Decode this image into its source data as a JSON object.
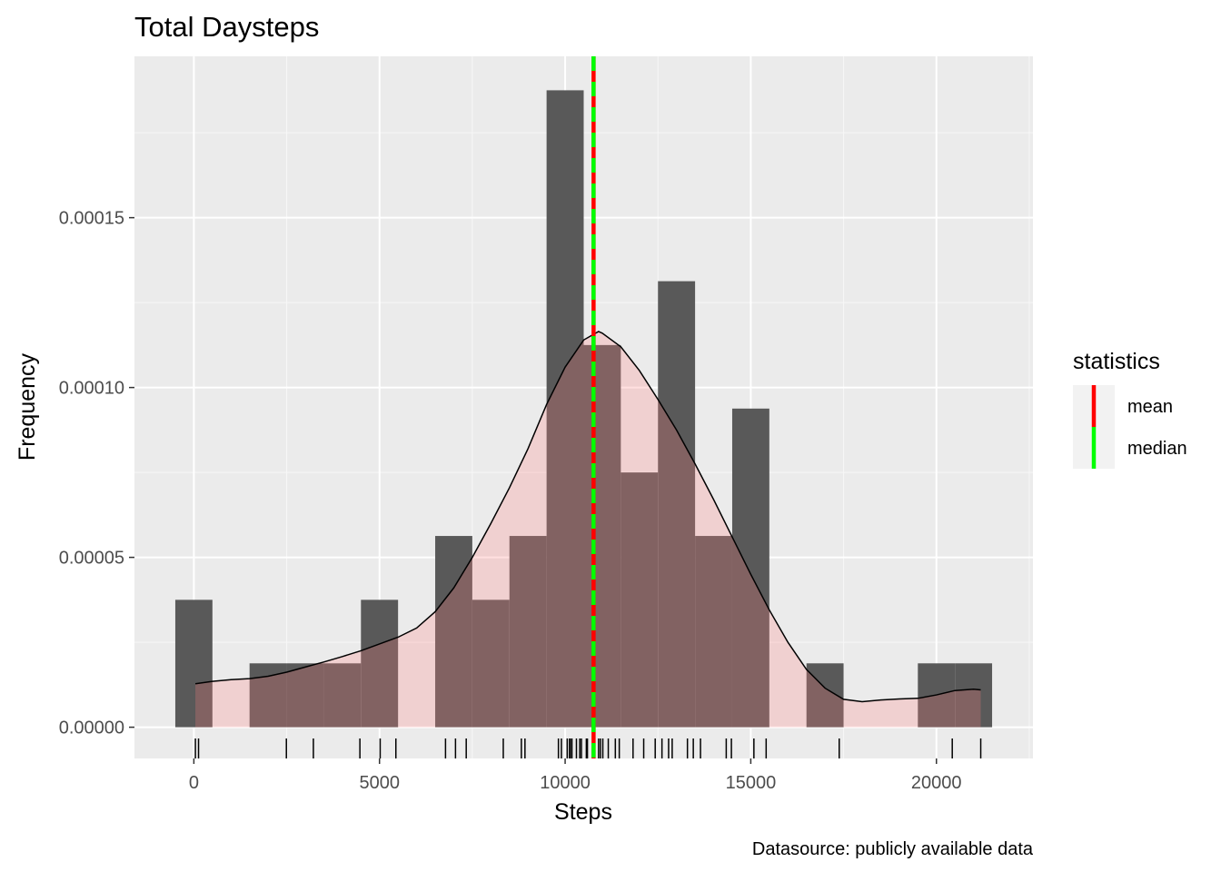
{
  "chart_data": {
    "type": "histogram",
    "title": "Total Daysteps",
    "xlabel": "Steps",
    "ylabel": "Frequency",
    "caption": "Datasource: publicly available data",
    "xlim": [
      -1600,
      22600
    ],
    "ylim": [
      -9.2e-06,
      0.0001975
    ],
    "x_ticks": [
      0,
      5000,
      10000,
      15000,
      20000
    ],
    "x_tick_labels": [
      "0",
      "5000",
      "10000",
      "15000",
      "20000"
    ],
    "y_ticks": [
      0,
      5e-05,
      0.0001,
      0.00015
    ],
    "y_tick_labels": [
      "0.00000",
      "0.00005",
      "0.00010",
      "0.00015"
    ],
    "grid": true,
    "panel_background": "#ebebeb",
    "histogram": {
      "fill": "#595959",
      "bins": [
        {
          "x0": -500,
          "x1": 500,
          "density": 3.75e-05
        },
        {
          "x0": 500,
          "x1": 1500,
          "density": 0
        },
        {
          "x0": 1500,
          "x1": 2500,
          "density": 1.88e-05
        },
        {
          "x0": 2500,
          "x1": 3500,
          "density": 1.88e-05
        },
        {
          "x0": 3500,
          "x1": 4500,
          "density": 1.88e-05
        },
        {
          "x0": 4500,
          "x1": 5500,
          "density": 3.75e-05
        },
        {
          "x0": 5500,
          "x1": 6500,
          "density": 0
        },
        {
          "x0": 6500,
          "x1": 7500,
          "density": 5.63e-05
        },
        {
          "x0": 7500,
          "x1": 8500,
          "density": 3.75e-05
        },
        {
          "x0": 8500,
          "x1": 9500,
          "density": 5.63e-05
        },
        {
          "x0": 9500,
          "x1": 10500,
          "density": 0.0001875
        },
        {
          "x0": 10500,
          "x1": 11500,
          "density": 0.0001125
        },
        {
          "x0": 11500,
          "x1": 12500,
          "density": 7.5e-05
        },
        {
          "x0": 12500,
          "x1": 13500,
          "density": 0.0001313
        },
        {
          "x0": 13500,
          "x1": 14500,
          "density": 5.63e-05
        },
        {
          "x0": 14500,
          "x1": 15500,
          "density": 9.38e-05
        },
        {
          "x0": 15500,
          "x1": 16500,
          "density": 0
        },
        {
          "x0": 16500,
          "x1": 17500,
          "density": 1.88e-05
        },
        {
          "x0": 17500,
          "x1": 18500,
          "density": 0
        },
        {
          "x0": 18500,
          "x1": 19500,
          "density": 0
        },
        {
          "x0": 19500,
          "x1": 20500,
          "density": 1.88e-05
        },
        {
          "x0": 20500,
          "x1": 21500,
          "density": 1.88e-05
        }
      ]
    },
    "density": {
      "fill": "#ff8080",
      "fill_opacity": 0.25,
      "stroke": "#000000",
      "x": [
        41,
        500,
        1000,
        1500,
        2000,
        2500,
        3000,
        3500,
        4000,
        4500,
        5000,
        5500,
        6000,
        6500,
        7000,
        7500,
        8000,
        8500,
        9000,
        9500,
        10000,
        10500,
        10900,
        11000,
        11500,
        12000,
        12500,
        13000,
        13500,
        14000,
        14500,
        15000,
        15500,
        16000,
        16500,
        17000,
        17500,
        18000,
        18500,
        19000,
        19500,
        20000,
        20500,
        21000,
        21194
      ],
      "y": [
        1.28e-05,
        1.35e-05,
        1.4e-05,
        1.43e-05,
        1.5e-05,
        1.62e-05,
        1.77e-05,
        1.92e-05,
        2.08e-05,
        2.25e-05,
        2.45e-05,
        2.65e-05,
        2.92e-05,
        3.4e-05,
        4.1e-05,
        5e-05,
        6e-05,
        7.05e-05,
        8.2e-05,
        9.5e-05,
        0.000106,
        0.000114,
        0.0001165,
        0.000116,
        0.000112,
        0.000105,
        9.65e-05,
        8.75e-05,
        7.75e-05,
        6.7e-05,
        5.6e-05,
        4.5e-05,
        3.45e-05,
        2.5e-05,
        1.7e-05,
        1.15e-05,
        8.2e-06,
        7.5e-06,
        8e-06,
        8.3e-06,
        8.5e-06,
        9.5e-06,
        1.08e-05,
        1.12e-05,
        1.1e-05
      ]
    },
    "rug": {
      "color": "#000000",
      "x": [
        41,
        126,
        2492,
        3219,
        4472,
        5018,
        5441,
        6778,
        7047,
        7336,
        8334,
        8821,
        8918,
        9819,
        9900,
        10056,
        10119,
        10139,
        10183,
        10304,
        10395,
        10439,
        10571,
        10600,
        10765,
        10900,
        10950,
        11015,
        11162,
        11352,
        11458,
        11829,
        12116,
        12426,
        12608,
        12787,
        12883,
        13294,
        13452,
        13646,
        14339,
        14478,
        15084,
        15414,
        17382,
        20427,
        21194
      ]
    },
    "vlines": [
      {
        "name": "mean",
        "value": 10766.19,
        "color": "#ff0000"
      },
      {
        "name": "median",
        "value": 10765,
        "color": "#00ff00"
      }
    ],
    "legend": {
      "title": "statistics",
      "placement": "right",
      "entries": [
        {
          "label": "mean",
          "color": "#ff0000"
        },
        {
          "label": "median",
          "color": "#00ff00"
        }
      ]
    }
  }
}
